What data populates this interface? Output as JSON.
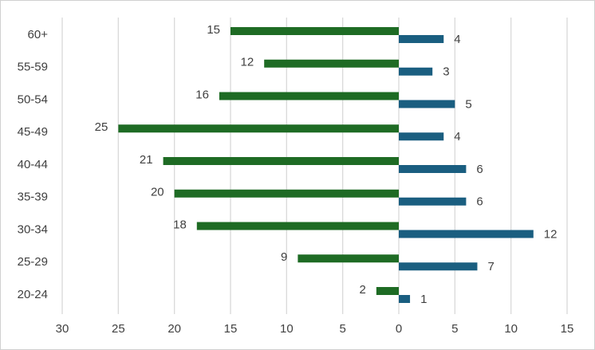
{
  "chart_data": {
    "type": "bar",
    "orientation": "horizontal",
    "categories": [
      "60+",
      "55-59",
      "50-54",
      "45-49",
      "40-44",
      "35-39",
      "30-34",
      "25-29",
      "20-24"
    ],
    "series": [
      {
        "color": "#1e6b24",
        "values": [
          -15,
          -12,
          -16,
          -25,
          -21,
          -20,
          -18,
          -9,
          -2
        ],
        "value_labels": [
          "15",
          "12",
          "16",
          "25",
          "21",
          "20",
          "18",
          "9",
          "2"
        ]
      },
      {
        "color": "#1a5e80",
        "values": [
          4,
          3,
          5,
          4,
          6,
          6,
          12,
          7,
          1
        ]
      }
    ],
    "xlim": [
      -30,
      15
    ],
    "xticks": [
      {
        "value": -30,
        "label": "30"
      },
      {
        "value": -25,
        "label": "25"
      },
      {
        "value": -20,
        "label": "20"
      },
      {
        "value": -15,
        "label": "15"
      },
      {
        "value": -10,
        "label": "10"
      },
      {
        "value": -5,
        "label": "5"
      },
      0,
      5,
      10,
      15
    ],
    "grid": true
  }
}
